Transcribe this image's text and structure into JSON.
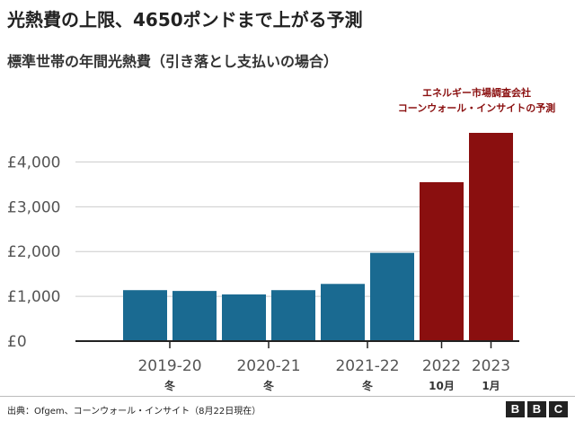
{
  "header": {
    "title": "光熱費の上限、4650ポンドまで上がる予測",
    "subtitle": "標準世帯の年間光熱費（引き落とし支払いの場合）"
  },
  "footer": {
    "source": "出典：Ofgem、コーンウォール・インサイト（8月22日現在）",
    "logo_letters": [
      "B",
      "B",
      "C"
    ]
  },
  "colors": {
    "actual": "#1a6a91",
    "forecast": "#8a0f0f",
    "annotation": "#8a0f0f",
    "axis_text": "#555555",
    "grid": "#cccccc",
    "baseline": "#222222"
  },
  "chart_data": {
    "type": "bar",
    "title": "光熱費の上限、4650ポンドまで上がる予測",
    "subtitle": "標準世帯の年間光熱費（引き落とし支払いの場合）",
    "ylim": [
      0,
      4650
    ],
    "yticks": [
      0,
      1000,
      2000,
      3000,
      4000
    ],
    "ytick_labels": [
      "£0",
      "£1,000",
      "£2,000",
      "£3,000",
      "£4,000"
    ],
    "grid": true,
    "bars": [
      {
        "value": 1138,
        "kind": "actual"
      },
      {
        "value": 1120,
        "kind": "actual"
      },
      {
        "value": 1042,
        "kind": "actual"
      },
      {
        "value": 1138,
        "kind": "actual"
      },
      {
        "value": 1277,
        "kind": "actual"
      },
      {
        "value": 1971,
        "kind": "actual"
      },
      {
        "value": 3549,
        "kind": "forecast"
      },
      {
        "value": 4650,
        "kind": "forecast"
      }
    ],
    "x_groups": [
      {
        "label": "2019-20",
        "sublabel": "冬",
        "bar_index": 0.5
      },
      {
        "label": "2020-21",
        "sublabel": "冬",
        "bar_index": 2.5
      },
      {
        "label": "2021-22",
        "sublabel": "冬",
        "bar_index": 4.5
      },
      {
        "label": "2022",
        "sublabel": "10月",
        "bar_index": 6
      },
      {
        "label": "2023",
        "sublabel": "1月",
        "bar_index": 7
      }
    ],
    "annotation": {
      "lines": [
        "エネルギー市場調査会社",
        "コーンウォール・インサイトの予測"
      ],
      "bar_index": 7
    }
  }
}
